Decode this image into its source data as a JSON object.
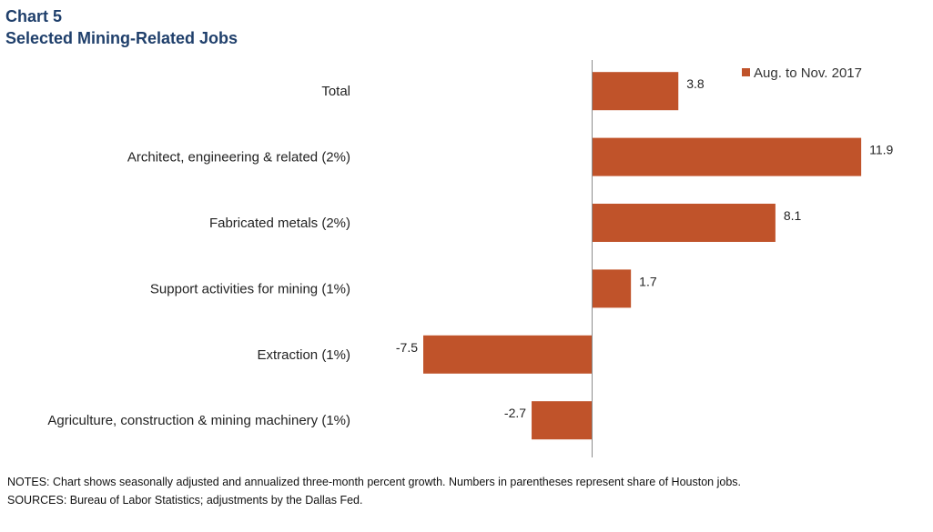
{
  "header": {
    "chart_number": "Chart 5",
    "title": "Selected Mining-Related Jobs"
  },
  "footer": {
    "notes": "NOTES:  Chart shows seasonally adjusted and annualized three-month percent growth. Numbers in parentheses represent share of Houston jobs.",
    "sources": "SOURCES:  Bureau of Labor Statistics; adjustments by the Dallas Fed."
  },
  "colors": {
    "bar": "#c0532a",
    "axis": "#8c8c8c",
    "title": "#1f3f6b"
  },
  "chart_data": {
    "type": "bar",
    "orientation": "horizontal",
    "title": "Selected Mining-Related Jobs",
    "categories": [
      "Total",
      "Architect, engineering & related (2%)",
      "Fabricated metals (2%)",
      "Support activities for mining (1%)",
      "Extraction (1%)",
      "Agriculture, construction & mining machinery (1%)"
    ],
    "series": [
      {
        "name": "Aug. to Nov. 2017",
        "values": [
          3.8,
          11.9,
          8.1,
          1.7,
          -7.5,
          -2.7
        ],
        "value_labels": [
          "3.8",
          "11.9",
          "8.1",
          "1.7",
          "-7.5",
          "-2.7"
        ]
      }
    ],
    "xlim": [
      -8.0,
      12.0
    ],
    "grid": false,
    "legend_position": "top-right",
    "xlabel": "",
    "ylabel": ""
  }
}
